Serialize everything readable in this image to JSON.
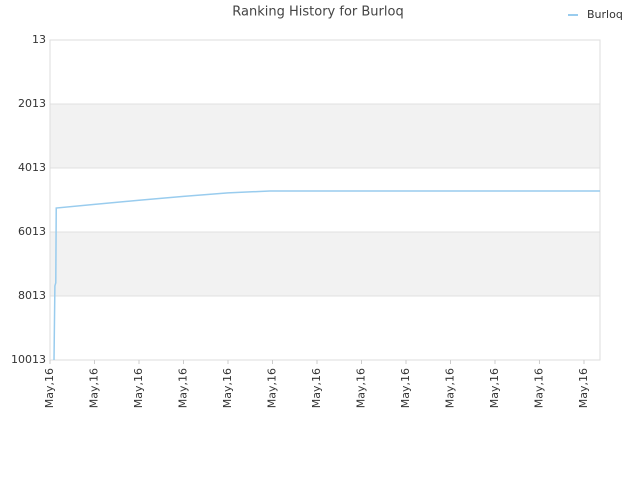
{
  "chart_data": {
    "type": "line",
    "title": "Ranking History for Burloq",
    "x": [
      0.09,
      0.11,
      0.13,
      0.14,
      1,
      2,
      3,
      4,
      4.94,
      12.36
    ],
    "series": [
      {
        "name": "Burloq",
        "color": "#99ccee",
        "values": [
          10013,
          7700,
          7600,
          5263,
          5150,
          5020,
          4900,
          4790,
          4732,
          4732
        ]
      }
    ],
    "xlim": [
      0,
      12.36
    ],
    "xticks": [
      {
        "value": 0,
        "label": "May,16"
      },
      {
        "value": 1,
        "label": "May,16"
      },
      {
        "value": 2,
        "label": "May,16"
      },
      {
        "value": 3,
        "label": "May,16"
      },
      {
        "value": 4,
        "label": "May,16"
      },
      {
        "value": 5,
        "label": "May,16"
      },
      {
        "value": 6,
        "label": "May,16"
      },
      {
        "value": 7,
        "label": "May,16"
      },
      {
        "value": 8,
        "label": "May,16"
      },
      {
        "value": 9,
        "label": "May,16"
      },
      {
        "value": 10,
        "label": "May,16"
      },
      {
        "value": 11,
        "label": "May,16"
      },
      {
        "value": 12,
        "label": "May,16"
      }
    ],
    "ylim": [
      10013,
      13
    ],
    "yticks": [
      13,
      2013,
      4013,
      6013,
      8013,
      10013
    ],
    "inverted_y": true,
    "grid": true,
    "legend": "top-right"
  }
}
